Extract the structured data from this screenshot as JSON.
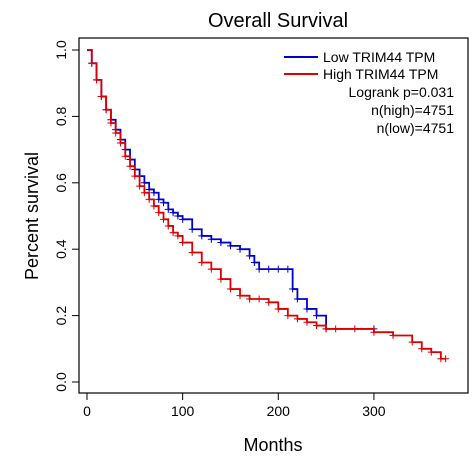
{
  "chart_data": {
    "type": "line",
    "title": "Overall Survival",
    "xlabel": "Months",
    "ylabel": "Percent survival",
    "xlim": [
      0,
      390
    ],
    "ylim": [
      0,
      1.0
    ],
    "x_ticks": [
      0,
      100,
      200,
      300
    ],
    "y_ticks": [
      0.0,
      0.2,
      0.4,
      0.6,
      0.8,
      1.0
    ],
    "x_tick_labels": [
      "0",
      "100",
      "200",
      "300"
    ],
    "y_tick_labels": [
      "0.0",
      "0.2",
      "0.4",
      "0.6",
      "0.8",
      "1.0"
    ],
    "legend_position": "top-right",
    "series": [
      {
        "name": "Low TRIM44 TPM",
        "color": "#0000cc",
        "x": [
          0,
          5,
          10,
          15,
          20,
          25,
          30,
          35,
          40,
          45,
          50,
          55,
          60,
          65,
          70,
          75,
          80,
          85,
          90,
          95,
          100,
          110,
          120,
          130,
          140,
          150,
          160,
          170,
          175,
          180,
          190,
          200,
          210,
          215,
          220,
          230,
          240,
          250,
          300
        ],
        "y": [
          1.0,
          0.96,
          0.91,
          0.86,
          0.82,
          0.79,
          0.76,
          0.73,
          0.7,
          0.67,
          0.64,
          0.62,
          0.6,
          0.58,
          0.57,
          0.55,
          0.54,
          0.52,
          0.51,
          0.5,
          0.49,
          0.46,
          0.44,
          0.43,
          0.42,
          0.41,
          0.4,
          0.38,
          0.36,
          0.34,
          0.34,
          0.34,
          0.34,
          0.28,
          0.25,
          0.22,
          0.2,
          0.16,
          0.16
        ]
      },
      {
        "name": "High TRIM44 TPM",
        "color": "#dd0000",
        "x": [
          0,
          5,
          10,
          15,
          20,
          25,
          30,
          35,
          40,
          45,
          50,
          55,
          60,
          65,
          70,
          75,
          80,
          85,
          90,
          95,
          100,
          110,
          120,
          130,
          140,
          150,
          160,
          170,
          180,
          190,
          200,
          210,
          220,
          230,
          240,
          250,
          260,
          280,
          300,
          320,
          340,
          350,
          360,
          370,
          375
        ],
        "y": [
          1.0,
          0.96,
          0.91,
          0.86,
          0.82,
          0.78,
          0.75,
          0.72,
          0.68,
          0.65,
          0.62,
          0.59,
          0.57,
          0.55,
          0.53,
          0.51,
          0.49,
          0.47,
          0.45,
          0.44,
          0.42,
          0.39,
          0.36,
          0.34,
          0.31,
          0.28,
          0.26,
          0.25,
          0.25,
          0.24,
          0.22,
          0.2,
          0.19,
          0.18,
          0.17,
          0.16,
          0.16,
          0.16,
          0.15,
          0.14,
          0.12,
          0.1,
          0.09,
          0.07,
          0.07
        ]
      }
    ],
    "stats": {
      "logrank": "Logrank p=0.031",
      "n_high": "n(high)=4751",
      "n_low": "n(low)=4751"
    }
  }
}
